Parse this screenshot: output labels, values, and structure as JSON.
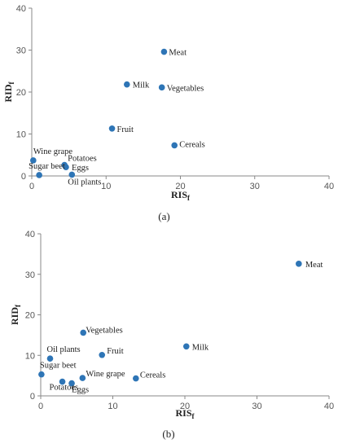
{
  "chart_data": [
    {
      "type": "scatter",
      "panel_label": "(a)",
      "xlabel": "RIS",
      "xlabel_sub": "f",
      "ylabel": "RID",
      "ylabel_sub": "f",
      "xlim": [
        0,
        40
      ],
      "ylim": [
        0,
        40
      ],
      "xticks": [
        0,
        10,
        20,
        30,
        40
      ],
      "yticks": [
        0,
        10,
        20,
        30,
        40
      ],
      "color": "#2e75b6",
      "grid": false,
      "points": [
        {
          "name": "Meat",
          "x": 17.8,
          "y": 29.6
        },
        {
          "name": "Milk",
          "x": 12.8,
          "y": 21.8
        },
        {
          "name": "Vegetables",
          "x": 17.5,
          "y": 21.1
        },
        {
          "name": "Fruit",
          "x": 10.8,
          "y": 11.3
        },
        {
          "name": "Cereals",
          "x": 19.2,
          "y": 7.3
        },
        {
          "name": "Wine grape",
          "x": 0.2,
          "y": 3.7
        },
        {
          "name": "Potatoes",
          "x": 4.4,
          "y": 2.6
        },
        {
          "name": "Eggs",
          "x": 4.6,
          "y": 2.1
        },
        {
          "name": "Sugar beet",
          "x": 1.0,
          "y": 0.2
        },
        {
          "name": "Oil plants",
          "x": 5.4,
          "y": 0.3
        }
      ]
    },
    {
      "type": "scatter",
      "panel_label": "(b)",
      "xlabel": "RIS",
      "xlabel_sub": "f",
      "ylabel": "RID",
      "ylabel_sub": "f",
      "xlim": [
        0,
        40
      ],
      "ylim": [
        0,
        40
      ],
      "xticks": [
        0,
        10,
        20,
        30,
        40
      ],
      "yticks": [
        0,
        10,
        20,
        30,
        40
      ],
      "color": "#2e75b6",
      "grid": false,
      "points": [
        {
          "name": "Meat",
          "x": 35.8,
          "y": 32.6
        },
        {
          "name": "Vegetables",
          "x": 5.9,
          "y": 15.6
        },
        {
          "name": "Milk",
          "x": 20.2,
          "y": 12.2
        },
        {
          "name": "Fruit",
          "x": 8.5,
          "y": 10.1
        },
        {
          "name": "Oil plants",
          "x": 1.3,
          "y": 9.2
        },
        {
          "name": "Sugar beet",
          "x": 0.1,
          "y": 5.3
        },
        {
          "name": "Wine grape",
          "x": 5.8,
          "y": 4.4
        },
        {
          "name": "Cereals",
          "x": 13.2,
          "y": 4.3
        },
        {
          "name": "Potatoes",
          "x": 3.0,
          "y": 3.5
        },
        {
          "name": "Eggs",
          "x": 4.3,
          "y": 3.1
        }
      ]
    }
  ]
}
